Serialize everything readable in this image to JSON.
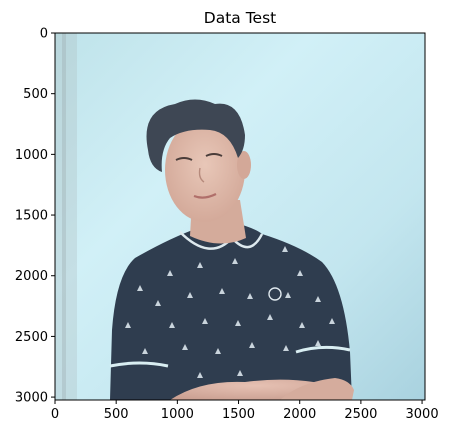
{
  "chart_data": {
    "type": "image",
    "title": "Data Test",
    "xlabel": "",
    "ylabel": "",
    "xlim": [
      0,
      3024
    ],
    "ylim": [
      3024,
      0
    ],
    "x_ticks": [
      0,
      500,
      1000,
      1500,
      2000,
      2500,
      3000
    ],
    "y_ticks": [
      0,
      500,
      1000,
      1500,
      2000,
      2500,
      3000
    ],
    "grid": false,
    "legend": "none",
    "image_content": {
      "subject": "person-portrait",
      "background": "light-blue-wall",
      "shirt_color": "#2f3d4f"
    }
  }
}
